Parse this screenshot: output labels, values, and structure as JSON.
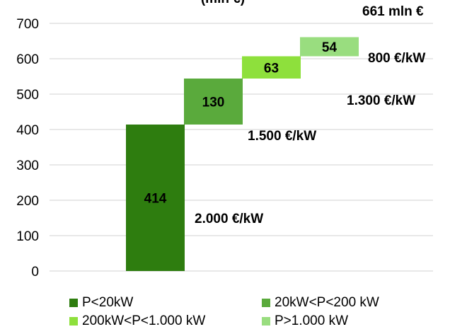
{
  "chart_data": {
    "type": "bar",
    "subtype": "stacked-waterfall",
    "title": "(mln €)",
    "total_label": "661 mln €",
    "ylim": [
      0,
      700
    ],
    "yticks": [
      0,
      100,
      200,
      300,
      400,
      500,
      600,
      700
    ],
    "grid": true,
    "series": [
      {
        "name": "P<20kW",
        "value": 414,
        "label": "414",
        "cost": "2.000 €/kW",
        "color": "#2e7d0f"
      },
      {
        "name": "20kW<P<200 kW",
        "value": 130,
        "label": "130",
        "cost": "1.500 €/kW",
        "color": "#5aaa3c"
      },
      {
        "name": "200kW<P<1.000 kW",
        "value": 63,
        "label": "63",
        "cost": "1.300 €/kW",
        "color": "#8ee03c"
      },
      {
        "name": "P>1.000 kW",
        "value": 54,
        "label": "54",
        "cost": "800 €/kW",
        "color": "#99dd7f"
      }
    ],
    "legend_position": "bottom"
  }
}
